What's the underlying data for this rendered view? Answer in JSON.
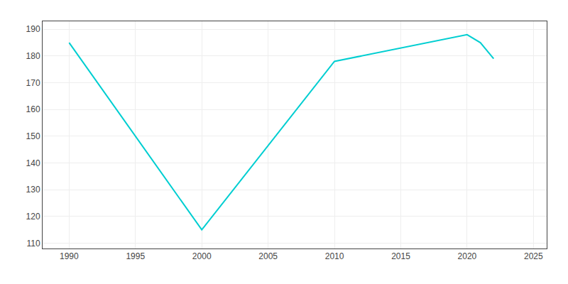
{
  "chart_data": {
    "type": "line",
    "x": [
      1990,
      2000,
      2010,
      2020,
      2021,
      2022
    ],
    "values": [
      185,
      115,
      178,
      188,
      185,
      179
    ],
    "color": "#00CED1",
    "xlim": [
      1988,
      2026
    ],
    "ylim": [
      108,
      193
    ],
    "xticks": [
      1990,
      1995,
      2000,
      2005,
      2010,
      2015,
      2020,
      2025
    ],
    "yticks": [
      110,
      120,
      130,
      140,
      150,
      160,
      170,
      180,
      190
    ],
    "grid": true
  }
}
